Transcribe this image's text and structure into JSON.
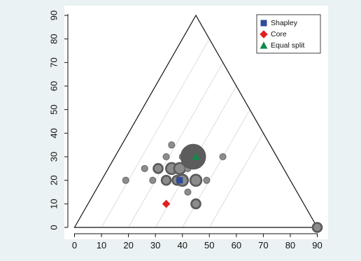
{
  "chart_data": {
    "type": "scatter",
    "subtype": "ternary-bubble",
    "title": "",
    "xlabel": "",
    "ylabel": "",
    "xlim": [
      0,
      90
    ],
    "ylim": [
      0,
      90
    ],
    "x_ticks": [
      0,
      10,
      20,
      30,
      40,
      50,
      60,
      70,
      80,
      90
    ],
    "y_ticks": [
      0,
      10,
      20,
      30,
      40,
      50,
      60,
      70,
      80,
      90
    ],
    "x_tick_labels": [
      "0",
      "10",
      "20",
      "30",
      "40",
      "50",
      "60",
      "70",
      "80",
      "90"
    ],
    "y_tick_labels": [
      "0",
      "10",
      "20",
      "30",
      "40",
      "50",
      "60",
      "70",
      "80",
      "90"
    ],
    "triangle": [
      [
        0,
        0
      ],
      [
        45,
        90
      ],
      [
        90,
        0
      ]
    ],
    "grid": true,
    "legend_position": "top-right",
    "colors": {
      "background": "#eaf2f3",
      "plot_area": "#ffffff",
      "bubble_fill": "#8c8c8c",
      "bubble_outline": "#5a5a5a",
      "large_bubble": "#5c5c5c",
      "shapley": "#2e4b9b",
      "core": "#e02020",
      "equal_split": "#0e8a4a",
      "grid": "#d6d6d6"
    },
    "bubbles": [
      {
        "x": 19,
        "y": 20,
        "size": 1
      },
      {
        "x": 26,
        "y": 25,
        "size": 1
      },
      {
        "x": 29,
        "y": 20,
        "size": 1
      },
      {
        "x": 31,
        "y": 25,
        "size": 2
      },
      {
        "x": 34,
        "y": 20,
        "size": 2
      },
      {
        "x": 34,
        "y": 30,
        "size": 1
      },
      {
        "x": 36,
        "y": 35,
        "size": 1
      },
      {
        "x": 36,
        "y": 25,
        "size": 3
      },
      {
        "x": 38,
        "y": 20,
        "size": 2
      },
      {
        "x": 39,
        "y": 25,
        "size": 3
      },
      {
        "x": 40,
        "y": 30,
        "size": 1
      },
      {
        "x": 40,
        "y": 20,
        "size": 3
      },
      {
        "x": 42,
        "y": 25,
        "size": 1
      },
      {
        "x": 42,
        "y": 15,
        "size": 1
      },
      {
        "x": 44,
        "y": 30,
        "size": 15
      },
      {
        "x": 45,
        "y": 20,
        "size": 3
      },
      {
        "x": 45,
        "y": 10,
        "size": 2
      },
      {
        "x": 49,
        "y": 20,
        "size": 1
      },
      {
        "x": 55,
        "y": 30,
        "size": 1
      },
      {
        "x": 90,
        "y": 0,
        "size": 2
      }
    ],
    "series": [
      {
        "name": "Shapley",
        "marker": "square",
        "color": "#2e4b9b",
        "x": [
          39
        ],
        "y": [
          20
        ]
      },
      {
        "name": "Core",
        "marker": "diamond",
        "color": "#e02020",
        "x": [
          34
        ],
        "y": [
          10
        ]
      },
      {
        "name": "Equal split",
        "marker": "triangle",
        "color": "#0e8a4a",
        "x": [
          45
        ],
        "y": [
          30
        ]
      }
    ]
  }
}
